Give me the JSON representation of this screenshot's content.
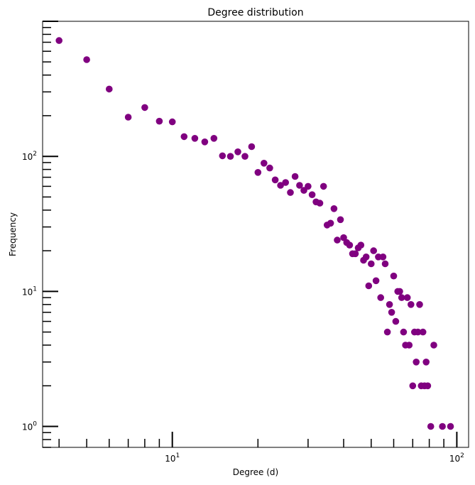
{
  "chart_data": {
    "type": "scatter",
    "title": "Degree distribution",
    "xlabel": "Degree (d)",
    "ylabel": "Frequency",
    "xscale": "log",
    "yscale": "log",
    "xlim": [
      3.5,
      110
    ],
    "ylim": [
      0.7,
      1000
    ],
    "grid": false,
    "legend": "none",
    "marker_color": "#800080",
    "x_ticks": [
      {
        "base": "10",
        "exp": "1",
        "value": 10
      },
      {
        "base": "10",
        "exp": "2",
        "value": 100
      }
    ],
    "y_ticks": [
      {
        "base": "10",
        "exp": "0",
        "value": 1
      },
      {
        "base": "10",
        "exp": "1",
        "value": 10
      },
      {
        "base": "10",
        "exp": "2",
        "value": 100
      }
    ],
    "series": [
      {
        "points": [
          [
            4,
            720
          ],
          [
            5,
            520
          ],
          [
            6,
            315
          ],
          [
            7,
            195
          ],
          [
            8,
            230
          ],
          [
            9,
            182
          ],
          [
            10,
            180
          ],
          [
            11,
            140
          ],
          [
            12,
            136
          ],
          [
            13,
            128
          ],
          [
            14,
            136
          ],
          [
            15,
            101
          ],
          [
            16,
            100
          ],
          [
            17,
            108
          ],
          [
            18,
            100
          ],
          [
            19,
            118
          ],
          [
            20,
            76
          ],
          [
            21,
            89
          ],
          [
            22,
            82
          ],
          [
            23,
            67
          ],
          [
            24,
            61
          ],
          [
            25,
            64
          ],
          [
            26,
            54
          ],
          [
            27,
            71
          ],
          [
            28,
            61
          ],
          [
            29,
            56
          ],
          [
            30,
            60
          ],
          [
            31,
            52
          ],
          [
            32,
            46
          ],
          [
            33,
            45
          ],
          [
            34,
            60
          ],
          [
            35,
            31
          ],
          [
            36,
            32
          ],
          [
            37,
            41
          ],
          [
            38,
            24
          ],
          [
            39,
            34
          ],
          [
            40,
            25
          ],
          [
            41,
            23
          ],
          [
            42,
            22
          ],
          [
            43,
            19
          ],
          [
            44,
            19
          ],
          [
            45,
            21
          ],
          [
            46,
            22
          ],
          [
            47,
            17
          ],
          [
            48,
            18
          ],
          [
            49,
            11
          ],
          [
            50,
            16
          ],
          [
            51,
            20
          ],
          [
            52,
            12
          ],
          [
            53,
            18
          ],
          [
            54,
            9
          ],
          [
            55,
            18
          ],
          [
            56,
            16
          ],
          [
            57,
            5
          ],
          [
            58,
            8
          ],
          [
            59,
            7
          ],
          [
            60,
            13
          ],
          [
            61,
            6
          ],
          [
            62,
            10
          ],
          [
            63,
            10
          ],
          [
            64,
            9
          ],
          [
            65,
            5
          ],
          [
            66,
            4
          ],
          [
            67,
            9
          ],
          [
            68,
            4
          ],
          [
            69,
            8
          ],
          [
            70,
            2
          ],
          [
            71,
            5
          ],
          [
            72,
            3
          ],
          [
            73,
            5
          ],
          [
            74,
            8
          ],
          [
            75,
            2
          ],
          [
            76,
            5
          ],
          [
            77,
            2
          ],
          [
            78,
            3
          ],
          [
            79,
            2
          ],
          [
            81,
            1
          ],
          [
            83,
            4
          ],
          [
            89,
            1
          ],
          [
            95,
            1
          ]
        ]
      }
    ]
  }
}
